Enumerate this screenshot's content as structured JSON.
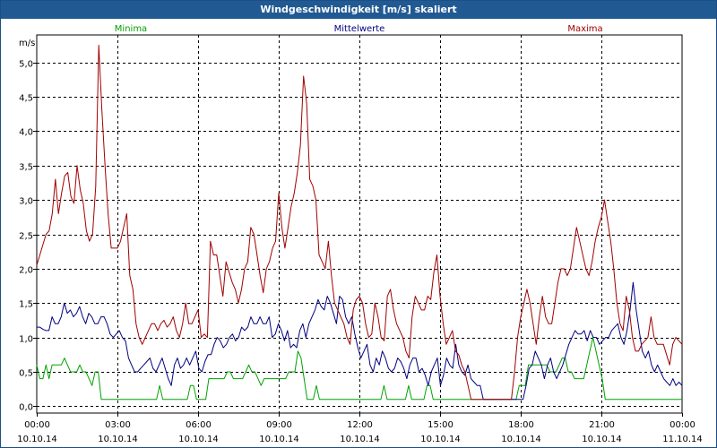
{
  "window": {
    "title": "Windgeschwindigkeit [m/s] skaliert"
  },
  "chart_data": {
    "type": "line",
    "title": "Windgeschwindigkeit [m/s] skaliert",
    "ylabel": "m/s",
    "ylim": [
      -0.1,
      5.4
    ],
    "xlim_hours": [
      0,
      24
    ],
    "grid": true,
    "legend_position": "top",
    "y_ticks": [
      "0,0",
      "0,5",
      "1,0",
      "1,5",
      "2,0",
      "2,5",
      "3,0",
      "3,5",
      "4,0",
      "4,5",
      "5,0"
    ],
    "x_ticks": [
      {
        "time": "00:00",
        "date": "10.10.14"
      },
      {
        "time": "03:00",
        "date": "10.10.14"
      },
      {
        "time": "06:00",
        "date": "10.10.14"
      },
      {
        "time": "09:00",
        "date": "10.10.14"
      },
      {
        "time": "12:00",
        "date": "10.10.14"
      },
      {
        "time": "15:00",
        "date": "10.10.14"
      },
      {
        "time": "18:00",
        "date": "10.10.14"
      },
      {
        "time": "21:00",
        "date": "10.10.14"
      },
      {
        "time": "00:00",
        "date": "11.10.14"
      }
    ],
    "series": [
      {
        "name": "Minima",
        "color": "#00a000",
        "values": [
          0.6,
          0.4,
          0.4,
          0.6,
          0.4,
          0.6,
          0.6,
          0.6,
          0.6,
          0.7,
          0.6,
          0.5,
          0.5,
          0.5,
          0.6,
          0.5,
          0.5,
          0.4,
          0.3,
          0.5,
          0.5,
          0.1,
          0.1,
          0.1,
          0.1,
          0.1,
          0.1,
          0.1,
          0.1,
          0.1,
          0.1,
          0.1,
          0.1,
          0.1,
          0.1,
          0.1,
          0.1,
          0.1,
          0.1,
          0.1,
          0.3,
          0.1,
          0.1,
          0.1,
          0.1,
          0.1,
          0.1,
          0.1,
          0.1,
          0.1,
          0.3,
          0.3,
          0.1,
          0.1,
          0.1,
          0.1,
          0.4,
          0.4,
          0.4,
          0.4,
          0.4,
          0.4,
          0.5,
          0.5,
          0.4,
          0.4,
          0.4,
          0.4,
          0.5,
          0.6,
          0.5,
          0.5,
          0.4,
          0.3,
          0.4,
          0.4,
          0.4,
          0.4,
          0.4,
          0.4,
          0.4,
          0.4,
          0.5,
          0.5,
          0.5,
          0.8,
          0.7,
          0.4,
          0.1,
          0.1,
          0.1,
          0.3,
          0.1,
          0.1,
          0.1,
          0.1,
          0.1,
          0.1,
          0.1,
          0.1,
          0.1,
          0.1,
          0.1,
          0.1,
          0.1,
          0.1,
          0.1,
          0.1,
          0.1,
          0.1,
          0.1,
          0.1,
          0.1,
          0.3,
          0.1,
          0.1,
          0.1,
          0.1,
          0.1,
          0.1,
          0.1,
          0.3,
          0.1,
          0.1,
          0.1,
          0.1,
          0.1,
          0.3,
          0.3,
          0.1,
          0.1,
          0.1,
          0.1,
          0.1,
          0.1,
          0.1,
          0.1,
          0.1,
          0.1,
          0.1,
          0.1,
          0.1,
          0.1,
          0.1,
          0.1,
          0.1,
          0.1,
          0.1,
          0.1,
          0.1,
          0.1,
          0.1,
          0.1,
          0.1,
          0.1,
          0.1,
          0.1,
          0.3,
          0.3,
          0.3,
          0.6,
          0.6,
          0.6,
          0.6,
          0.6,
          0.6,
          0.6,
          0.5,
          0.5,
          0.5,
          0.6,
          0.7,
          0.7,
          0.5,
          0.5,
          0.4,
          0.4,
          0.4,
          0.4,
          0.6,
          0.8,
          1.0,
          0.8,
          0.6,
          0.4,
          0.1,
          0.1,
          0.1,
          0.1,
          0.1,
          0.1,
          0.1,
          0.1,
          0.1,
          0.1,
          0.1,
          0.1,
          0.1,
          0.1,
          0.1,
          0.1,
          0.1,
          0.1,
          0.1,
          0.1,
          0.1,
          0.1,
          0.1,
          0.1,
          0.1,
          0.1
        ]
      },
      {
        "name": "Mittelwerte",
        "color": "#000080",
        "values": [
          1.15,
          1.15,
          1.12,
          1.1,
          1.1,
          1.3,
          1.2,
          1.2,
          1.3,
          1.5,
          1.35,
          1.4,
          1.3,
          1.35,
          1.45,
          1.3,
          1.2,
          1.35,
          1.3,
          1.2,
          1.2,
          1.3,
          1.3,
          1.2,
          1.05,
          1.0,
          1.05,
          1.1,
          1.0,
          0.95,
          0.7,
          0.6,
          0.5,
          0.5,
          0.55,
          0.6,
          0.65,
          0.7,
          0.55,
          0.5,
          0.6,
          0.7,
          0.55,
          0.4,
          0.3,
          0.6,
          0.7,
          0.55,
          0.6,
          0.7,
          0.6,
          0.7,
          0.8,
          0.55,
          0.5,
          0.65,
          0.75,
          0.75,
          0.9,
          1.0,
          0.95,
          0.85,
          0.9,
          1.0,
          1.05,
          0.95,
          1.0,
          1.15,
          1.1,
          1.15,
          1.3,
          1.2,
          1.2,
          1.3,
          1.2,
          1.2,
          1.3,
          1.0,
          1.05,
          1.2,
          1.1,
          0.95,
          1.1,
          0.85,
          0.9,
          0.85,
          1.1,
          1.2,
          1.0,
          1.2,
          1.3,
          1.4,
          1.55,
          1.45,
          1.4,
          1.6,
          1.5,
          1.35,
          1.2,
          1.6,
          1.55,
          1.3,
          1.2,
          1.3,
          1.05,
          0.85,
          0.7,
          0.8,
          0.9,
          0.6,
          0.5,
          0.7,
          0.6,
          0.8,
          0.7,
          0.55,
          0.5,
          0.55,
          0.7,
          0.65,
          0.55,
          0.4,
          0.6,
          0.7,
          0.7,
          0.5,
          0.55,
          0.45,
          0.3,
          0.5,
          0.6,
          0.7,
          0.3,
          0.45,
          0.7,
          0.6,
          0.55,
          0.9,
          0.6,
          0.5,
          0.45,
          0.6,
          0.4,
          0.35,
          0.3,
          0.3,
          0.1,
          0.1,
          0.1,
          0.1,
          0.1,
          0.1,
          0.1,
          0.1,
          0.1,
          0.1,
          0.1,
          0.1,
          0.1,
          0.1,
          0.3,
          0.55,
          0.6,
          0.8,
          0.7,
          0.6,
          0.4,
          0.6,
          0.7,
          0.5,
          0.4,
          0.5,
          0.6,
          0.75,
          0.9,
          1.0,
          1.1,
          1.05,
          1.05,
          1.1,
          0.95,
          1.1,
          1.0,
          1.0,
          0.9,
          0.95,
          1.0,
          1.0,
          1.1,
          1.15,
          1.2,
          1.0,
          0.9,
          1.1,
          1.4,
          1.8,
          1.4,
          1.1,
          0.8,
          0.7,
          0.8,
          0.6,
          0.5,
          0.6,
          0.5,
          0.4,
          0.35,
          0.3,
          0.4,
          0.3,
          0.35,
          0.3
        ]
      },
      {
        "name": "Maxima",
        "color": "#a00000",
        "values": [
          2.05,
          2.2,
          2.35,
          2.5,
          2.55,
          2.8,
          3.3,
          2.8,
          3.1,
          3.35,
          3.4,
          3.05,
          2.95,
          3.5,
          3.15,
          2.95,
          2.55,
          2.4,
          2.5,
          3.2,
          5.25,
          4.3,
          3.5,
          2.8,
          2.3,
          2.3,
          2.3,
          2.4,
          2.6,
          2.8,
          1.9,
          1.7,
          1.2,
          1.0,
          0.9,
          1.0,
          1.1,
          1.2,
          1.2,
          1.1,
          1.2,
          1.25,
          1.15,
          1.2,
          1.3,
          1.1,
          1.0,
          1.2,
          1.5,
          1.2,
          1.2,
          1.3,
          1.4,
          1.0,
          1.05,
          1.0,
          2.4,
          2.2,
          2.2,
          1.9,
          1.6,
          2.1,
          1.95,
          1.8,
          1.7,
          1.5,
          1.7,
          2.0,
          2.1,
          2.6,
          2.5,
          2.2,
          1.9,
          1.65,
          2.0,
          2.1,
          2.3,
          2.4,
          3.1,
          2.6,
          2.3,
          2.6,
          2.9,
          3.1,
          3.4,
          3.8,
          4.8,
          4.4,
          3.3,
          3.2,
          3.0,
          2.2,
          2.1,
          2.0,
          2.4,
          1.9,
          1.5,
          1.4,
          1.3,
          1.2,
          1.0,
          0.9,
          1.4,
          1.55,
          1.6,
          1.5,
          1.2,
          1.0,
          1.05,
          1.5,
          1.3,
          1.0,
          0.95,
          1.6,
          1.7,
          1.4,
          1.2,
          1.1,
          1.0,
          0.8,
          0.7,
          1.3,
          1.6,
          1.5,
          1.4,
          1.4,
          1.6,
          1.55,
          1.95,
          2.2,
          1.6,
          1.2,
          0.9,
          1.0,
          1.1,
          0.8,
          0.75,
          0.6,
          0.5,
          0.3,
          0.1,
          0.1,
          0.1,
          0.1,
          0.1,
          0.1,
          0.1,
          0.1,
          0.1,
          0.1,
          0.1,
          0.1,
          0.1,
          0.1,
          0.5,
          1.0,
          1.3,
          1.5,
          1.7,
          1.5,
          1.2,
          0.9,
          1.3,
          1.6,
          1.3,
          1.2,
          1.2,
          1.5,
          1.8,
          2.0,
          2.0,
          1.9,
          2.0,
          2.3,
          2.6,
          2.4,
          2.2,
          2.0,
          1.9,
          2.1,
          2.4,
          2.6,
          2.75,
          3.0,
          2.7,
          2.4,
          2.0,
          1.5,
          1.2,
          1.1,
          1.6,
          1.4,
          1.0,
          0.8,
          0.8,
          0.9,
          0.95,
          1.0,
          1.3,
          1.0,
          0.9,
          0.9,
          0.9,
          0.75,
          0.6,
          0.9,
          1.0,
          0.95,
          0.9
        ]
      }
    ]
  }
}
